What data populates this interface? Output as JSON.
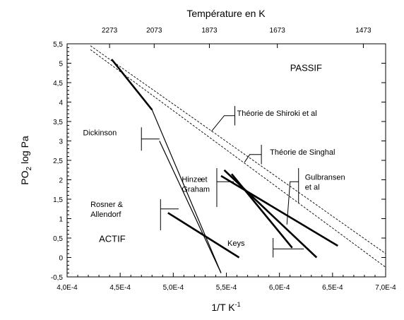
{
  "chart_data": {
    "type": "line",
    "xlabel": "1/T K",
    "xlabel_exp": "-1",
    "ylabel": "PO",
    "ylabel_sub": "2",
    "ylabel_rest": " log Pa",
    "top_axis_title": "Température en K",
    "xlim": [
      0.0004,
      0.0007
    ],
    "ylim": [
      -0.5,
      5.5
    ],
    "x_ticks": [
      {
        "value": 0.0004,
        "label": "4,0E-4"
      },
      {
        "value": 0.00045,
        "label": "4,5E-4"
      },
      {
        "value": 0.0005,
        "label": "5,0E-4"
      },
      {
        "value": 0.00055,
        "label": "5,5E-4"
      },
      {
        "value": 0.0006,
        "label": "6,0E-4"
      },
      {
        "value": 0.00065,
        "label": "6,5E-4"
      },
      {
        "value": 0.0007,
        "label": "7,0E-4"
      }
    ],
    "y_ticks": [
      {
        "value": -0.5,
        "label": "-0,5"
      },
      {
        "value": 0,
        "label": "0"
      },
      {
        "value": 0.5,
        "label": "0,5"
      },
      {
        "value": 1,
        "label": "1"
      },
      {
        "value": 1.5,
        "label": "1,5"
      },
      {
        "value": 2,
        "label": "2"
      },
      {
        "value": 2.5,
        "label": "2,5"
      },
      {
        "value": 3,
        "label": "3"
      },
      {
        "value": 3.5,
        "label": "3,5"
      },
      {
        "value": 4,
        "label": "4"
      },
      {
        "value": 4.5,
        "label": "4,5"
      },
      {
        "value": 5,
        "label": "5"
      },
      {
        "value": 5.5,
        "label": "5,5"
      }
    ],
    "top_ticks": [
      {
        "label": "2273",
        "x": 0.00044
      },
      {
        "label": "2073",
        "x": 0.000482
      },
      {
        "label": "1873",
        "x": 0.000534
      },
      {
        "label": "1673",
        "x": 0.000598
      },
      {
        "label": "1473",
        "x": 0.000679
      }
    ],
    "regions": [
      {
        "label": "PASSIF",
        "x": 0.00061,
        "y": 4.8
      },
      {
        "label": "ACTIF",
        "x": 0.00043,
        "y": 0.4
      }
    ],
    "series": [
      {
        "name": "Dickinson",
        "style": "solid",
        "weight": "thin",
        "x": [
          0.000442,
          0.00048,
          0.000545
        ],
        "y": [
          5.1,
          3.8,
          -0.4
        ]
      },
      {
        "name": "Dickinson",
        "style": "solid",
        "weight": "bold",
        "x": [
          0.000442,
          0.00048
        ],
        "y": [
          5.1,
          3.8
        ]
      },
      {
        "name": "Hinze et Graham",
        "style": "solid",
        "weight": "thin",
        "x": [
          0.000487,
          0.000545
        ],
        "y": [
          3.0,
          -0.4
        ]
      },
      {
        "name": "Rosner & Allendorf",
        "style": "solid",
        "weight": "bold",
        "x": [
          0.000495,
          0.000562
        ],
        "y": [
          1.15,
          0.0
        ]
      },
      {
        "name": "Keys",
        "style": "solid",
        "weight": "bold",
        "x": [
          0.000548,
          0.000635
        ],
        "y": [
          2.25,
          0.0
        ]
      },
      {
        "name": "Keys",
        "style": "solid",
        "weight": "bold",
        "x": [
          0.000555,
          0.000612
        ],
        "y": [
          2.15,
          0.25
        ]
      },
      {
        "name": "Gulbransen et al",
        "style": "solid",
        "weight": "bold",
        "x": [
          0.000545,
          0.000655
        ],
        "y": [
          2.1,
          0.3
        ]
      },
      {
        "name": "Théorie de Shiroki et al",
        "style": "dashed",
        "weight": "thin",
        "x": [
          0.000422,
          0.0007
        ],
        "y": [
          5.45,
          0.1
        ]
      },
      {
        "name": "Théorie de Singhal",
        "style": "dashed",
        "weight": "thin",
        "x": [
          0.000422,
          0.0007
        ],
        "y": [
          5.35,
          -0.25
        ]
      }
    ],
    "annotations": [
      {
        "lines": [
          "Théorie de Shiroki et al"
        ],
        "text_x": 0.00056,
        "text_y": 3.65,
        "line": [
          [
            0.000536,
            3.25
          ],
          [
            0.000548,
            3.65
          ],
          [
            0.000558,
            3.65
          ]
        ],
        "bracket": {
          "x": 0.000558,
          "y1": 3.4,
          "y2": 3.9
        }
      },
      {
        "lines": [
          "Théorie de Singhal"
        ],
        "text_x": 0.000591,
        "text_y": 2.65,
        "line": [
          [
            0.000567,
            2.45
          ],
          [
            0.000572,
            2.65
          ],
          [
            0.000583,
            2.65
          ]
        ],
        "bracket": {
          "x": 0.000583,
          "y1": 2.4,
          "y2": 2.9
        }
      },
      {
        "lines": [
          "Dickinson"
        ],
        "text_x": 0.000415,
        "text_y": 3.15,
        "line": [
          [
            0.00047,
            3.05
          ],
          [
            0.000487,
            3.05
          ]
        ],
        "bracket": {
          "x": 0.00047,
          "y1": 2.75,
          "y2": 3.35
        }
      },
      {
        "lines": [
          "Hinze",
          "Graham"
        ],
        "text_x": 0.000508,
        "text_y": 1.95,
        "line": [],
        "bracket": null
      },
      {
        "lines": [
          "et"
        ],
        "text_x": 0.000526,
        "text_y": 1.95,
        "line": [
          [
            0.000541,
            1.95
          ],
          [
            0.000557,
            1.95
          ]
        ],
        "bracket": {
          "x": 0.000541,
          "y1": 1.3,
          "y2": 2.3
        }
      },
      {
        "lines": [
          "Rosner &",
          "Allendorf"
        ],
        "text_x": 0.000422,
        "text_y": 1.3,
        "line": [
          [
            0.000488,
            1.25
          ],
          [
            0.000505,
            1.25
          ]
        ],
        "bracket": {
          "x": 0.000488,
          "y1": 0.7,
          "y2": 1.5
        }
      },
      {
        "lines": [
          "Gulbransen",
          "et al"
        ],
        "text_x": 0.000624,
        "text_y": 2.0,
        "line": [
          [
            0.000607,
            0.85
          ],
          [
            0.00061,
            1.95
          ],
          [
            0.000618,
            1.95
          ]
        ],
        "bracket": {
          "x": 0.000618,
          "y1": 1.4,
          "y2": 2.3
        }
      },
      {
        "lines": [
          "Keys"
        ],
        "text_x": 0.000551,
        "text_y": 0.3,
        "line": [
          [
            0.000594,
            0.22
          ],
          [
            0.000623,
            0.22
          ]
        ],
        "bracket": {
          "x": 0.000594,
          "y1": 0.0,
          "y2": 0.5
        }
      }
    ]
  }
}
